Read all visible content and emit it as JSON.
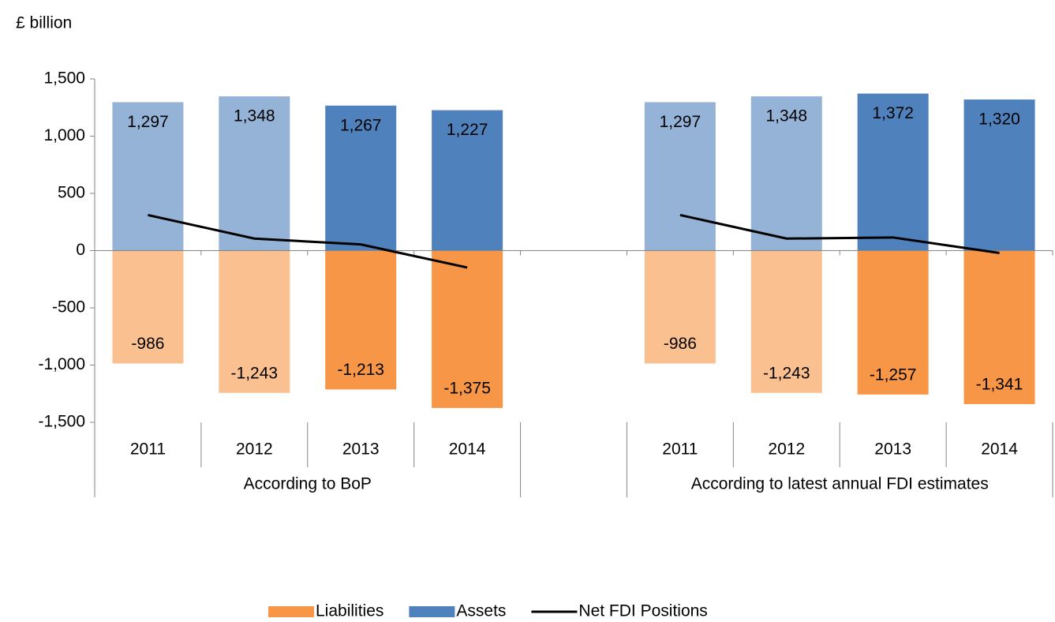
{
  "chart_data": {
    "type": "bar",
    "y_axis_label": "£ billion",
    "categories": [
      "2011",
      "2012",
      "2013",
      "2014",
      null,
      "2011",
      "2012",
      "2013",
      "2014"
    ],
    "groups": [
      "According to BoP",
      "According to latest annual FDI estimates"
    ],
    "series": [
      {
        "name": "Liabilities",
        "type": "bar",
        "color": "#f79646",
        "colors": [
          "#fac090",
          "#fac090",
          "#f79646",
          "#f79646",
          null,
          "#fac090",
          "#fac090",
          "#f79646",
          "#f79646"
        ],
        "values": [
          -986,
          -1243,
          -1213,
          -1375,
          null,
          -986,
          -1243,
          -1257,
          -1341
        ],
        "value_labels": [
          "-986",
          "-1,243",
          "-1,213",
          "-1,375",
          null,
          "-986",
          "-1,243",
          "-1,257",
          "-1,341"
        ]
      },
      {
        "name": "Assets",
        "type": "bar",
        "color": "#4f81bd",
        "colors": [
          "#95b3d7",
          "#95b3d7",
          "#4f81bd",
          "#4f81bd",
          null,
          "#95b3d7",
          "#95b3d7",
          "#4f81bd",
          "#4f81bd"
        ],
        "values": [
          1297,
          1348,
          1267,
          1227,
          null,
          1297,
          1348,
          1372,
          1320
        ],
        "value_labels": [
          "1,297",
          "1,348",
          "1,267",
          "1,227",
          null,
          "1,297",
          "1,348",
          "1,372",
          "1,320"
        ]
      },
      {
        "name": "Net FDI Positions",
        "type": "line",
        "color": "#000000",
        "values": [
          311,
          105,
          54,
          -148,
          null,
          311,
          105,
          115,
          -21
        ]
      }
    ],
    "ylim": [
      -1500,
      1500
    ],
    "yticks": [
      {
        "value": -1500,
        "label": "-1,500"
      },
      {
        "value": -1000,
        "label": "-1,000"
      },
      -500,
      0,
      500,
      {
        "value": 1000,
        "label": "1,000"
      },
      {
        "value": 1500,
        "label": "1,500"
      }
    ],
    "grid": false,
    "legend": "bottom"
  }
}
